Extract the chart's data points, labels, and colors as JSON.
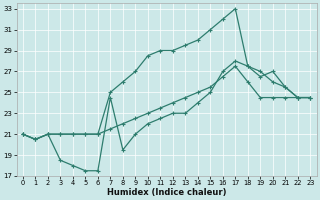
{
  "xlabel": "Humidex (Indice chaleur)",
  "bg_color": "#cce8e8",
  "line_color": "#2e7d6e",
  "xlim": [
    -0.5,
    23.5
  ],
  "ylim": [
    17,
    33.5
  ],
  "xticks": [
    0,
    1,
    2,
    3,
    4,
    5,
    6,
    7,
    8,
    9,
    10,
    11,
    12,
    13,
    14,
    15,
    16,
    17,
    18,
    19,
    20,
    21,
    22,
    23
  ],
  "yticks": [
    17,
    19,
    21,
    23,
    25,
    27,
    29,
    31,
    33
  ],
  "line_zigzag_x": [
    0,
    1,
    2,
    3,
    4,
    5,
    6,
    7,
    8,
    9,
    10,
    11,
    12,
    13,
    14,
    15,
    16,
    17,
    18,
    19,
    20,
    21,
    22,
    23
  ],
  "line_zigzag_y": [
    21,
    20.5,
    21,
    18.5,
    18,
    17.5,
    17.5,
    24.5,
    19.5,
    21,
    22,
    22.5,
    23,
    23,
    24,
    25,
    27,
    28,
    27.5,
    26.5,
    27,
    25.5,
    24.5,
    24.5
  ],
  "line_top_x": [
    0,
    1,
    2,
    3,
    4,
    5,
    6,
    7,
    8,
    9,
    10,
    11,
    12,
    13,
    14,
    15,
    16,
    17,
    18,
    19,
    20,
    21,
    22,
    23
  ],
  "line_top_y": [
    21,
    20.5,
    21,
    21,
    21,
    21,
    21,
    25,
    26,
    27,
    28.5,
    29,
    29,
    29.5,
    30,
    31,
    32,
    33,
    27.5,
    27,
    26,
    25.5,
    24.5,
    24.5
  ],
  "line_diag_x": [
    0,
    1,
    2,
    3,
    4,
    5,
    6,
    7,
    8,
    9,
    10,
    11,
    12,
    13,
    14,
    15,
    16,
    17,
    18,
    19,
    20,
    21,
    22,
    23
  ],
  "line_diag_y": [
    21,
    20.5,
    21,
    21,
    21,
    21,
    21,
    21.5,
    22,
    22.5,
    23,
    23.5,
    24,
    24.5,
    25,
    25.5,
    26.5,
    27.5,
    26,
    24.5,
    24.5,
    24.5,
    24.5,
    24.5
  ],
  "marker": "+",
  "marker_size": 3.5,
  "linewidth": 0.9
}
